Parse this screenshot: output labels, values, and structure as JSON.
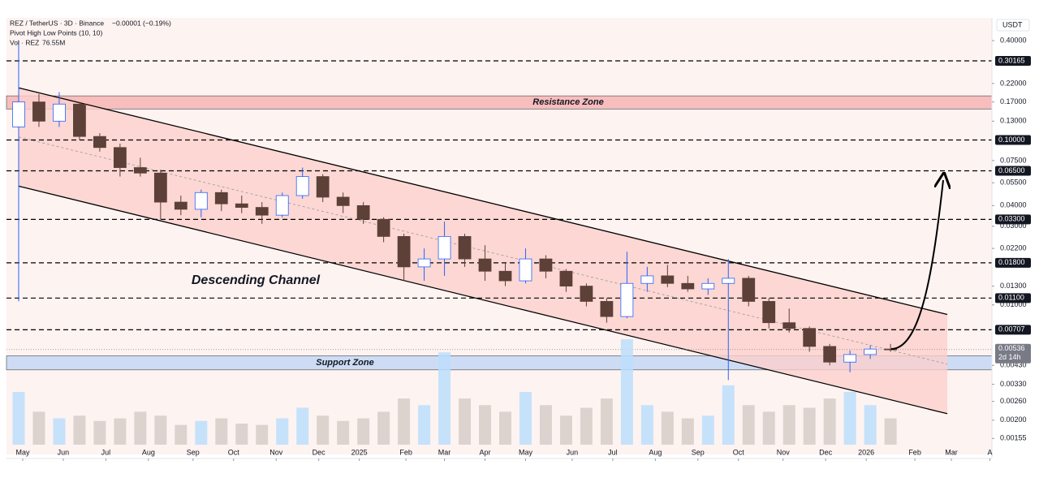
{
  "chart_data": {
    "type": "candlestick",
    "title": "REZ / TetherUS · 3D · Binance",
    "change": "−0.00001 (−0.19%)",
    "indicator": "Pivot High Low Points (10, 10)",
    "volume_title": "Vol · REZ",
    "volume_value": "76.55M",
    "currency": "USDT",
    "log_scale": true,
    "xlim": [
      -0.6,
      48
    ],
    "ylim": [
      0.00124,
      0.55
    ],
    "xticks": [
      {
        "value": 0.2,
        "label": "May"
      },
      {
        "value": 2.2,
        "label": "Jun"
      },
      {
        "value": 4.3,
        "label": "Jul"
      },
      {
        "value": 6.4,
        "label": "Aug"
      },
      {
        "value": 8.6,
        "label": "Sep"
      },
      {
        "value": 10.6,
        "label": "Oct"
      },
      {
        "value": 12.7,
        "label": "Nov"
      },
      {
        "value": 14.8,
        "label": "Dec"
      },
      {
        "value": 16.8,
        "label": "2025"
      },
      {
        "value": 19.1,
        "label": "Feb"
      },
      {
        "value": 21.0,
        "label": "Mar"
      },
      {
        "value": 23.0,
        "label": "Apr"
      },
      {
        "value": 25.0,
        "label": "May"
      },
      {
        "value": 27.3,
        "label": "Jun"
      },
      {
        "value": 29.3,
        "label": "Jul"
      },
      {
        "value": 31.4,
        "label": "Aug"
      },
      {
        "value": 33.5,
        "label": "Sep"
      },
      {
        "value": 35.5,
        "label": "Oct"
      },
      {
        "value": 37.7,
        "label": "Nov"
      },
      {
        "value": 39.8,
        "label": "Dec"
      },
      {
        "value": 41.8,
        "label": "2026"
      },
      {
        "value": 44.2,
        "label": "Feb"
      },
      {
        "value": 46.0,
        "label": "Mar"
      },
      {
        "value": 47.9,
        "label": "A"
      }
    ],
    "yticks": [
      {
        "value": 0.4,
        "label": "0.40000"
      },
      {
        "value": 0.22,
        "label": "0.22000"
      },
      {
        "value": 0.17,
        "label": "0.17000"
      },
      {
        "value": 0.13,
        "label": "0.13000"
      },
      {
        "value": 0.075,
        "label": "0.07500"
      },
      {
        "value": 0.055,
        "label": "0.05500"
      },
      {
        "value": 0.04,
        "label": "0.04000"
      },
      {
        "value": 0.03,
        "label": "0.03000"
      },
      {
        "value": 0.022,
        "label": "0.02200"
      },
      {
        "value": 0.013,
        "label": "0.01300"
      },
      {
        "value": 0.01,
        "label": "0.01000"
      },
      {
        "value": 0.0043,
        "label": "0.00430"
      },
      {
        "value": 0.0033,
        "label": "0.00330"
      },
      {
        "value": 0.0026,
        "label": "0.00260"
      },
      {
        "value": 0.002,
        "label": "0.00200"
      },
      {
        "value": 0.00155,
        "label": "0.00155"
      }
    ],
    "levels": [
      {
        "value": 0.30165,
        "label": "0.30165"
      },
      {
        "value": 0.1,
        "label": "0.10000"
      },
      {
        "value": 0.065,
        "label": "0.06500"
      },
      {
        "value": 0.033,
        "label": "0.03300"
      },
      {
        "value": 0.018,
        "label": "0.01800"
      },
      {
        "value": 0.011,
        "label": "0.01100"
      },
      {
        "value": 0.00707,
        "label": "0.00707"
      }
    ],
    "last_price": {
      "value": 0.00536,
      "label": "0.00536"
    },
    "countdown": "2d 14h",
    "up_color": "#ffffff",
    "up_edge": "#2962ff",
    "down_color": "#5d4037",
    "volume_up_color": "#bbdefb",
    "volume_down_color": "#d7ccc8",
    "zones": [
      {
        "name": "Resistance Zone",
        "low": 0.154,
        "high": 0.185,
        "color": "#f8b4b4"
      },
      {
        "name": "Support Zone",
        "low": 0.00404,
        "high": 0.00491,
        "color": "#c5d8f5"
      }
    ],
    "channel": {
      "name": "Descending Channel",
      "x": [
        0,
        45.8
      ],
      "upper": [
        0.207,
        0.00875
      ],
      "lower": [
        0.0525,
        0.00219
      ],
      "color": "#fbd0cc"
    },
    "open": [
      0.12,
      0.17,
      0.13,
      0.165,
      0.105,
      0.09,
      0.068,
      0.063,
      0.042,
      0.038,
      0.048,
      0.041,
      0.039,
      0.035,
      0.046,
      0.06,
      0.045,
      0.04,
      0.033,
      0.026,
      0.017,
      0.019,
      0.026,
      0.019,
      0.016,
      0.014,
      0.019,
      0.016,
      0.013,
      0.0105,
      0.0085,
      0.0135,
      0.015,
      0.0135,
      0.0125,
      0.0135,
      0.0145,
      0.0105,
      0.0078,
      0.0072,
      0.0056,
      0.0045,
      0.005,
      0.0054
    ],
    "high": [
      0.4,
      0.19,
      0.195,
      0.17,
      0.11,
      0.095,
      0.078,
      0.066,
      0.046,
      0.05,
      0.05,
      0.046,
      0.042,
      0.048,
      0.068,
      0.062,
      0.048,
      0.042,
      0.034,
      0.027,
      0.022,
      0.032,
      0.027,
      0.023,
      0.018,
      0.022,
      0.02,
      0.0165,
      0.0135,
      0.011,
      0.021,
      0.017,
      0.0175,
      0.015,
      0.0145,
      0.019,
      0.015,
      0.011,
      0.0095,
      0.0074,
      0.0058,
      0.0053,
      0.0057,
      0.0058
    ],
    "low": [
      0.0105,
      0.12,
      0.12,
      0.1,
      0.085,
      0.06,
      0.06,
      0.033,
      0.035,
      0.034,
      0.037,
      0.036,
      0.031,
      0.034,
      0.044,
      0.042,
      0.036,
      0.031,
      0.024,
      0.014,
      0.014,
      0.015,
      0.017,
      0.014,
      0.013,
      0.0135,
      0.0145,
      0.012,
      0.0098,
      0.0078,
      0.0083,
      0.012,
      0.0128,
      0.012,
      0.0115,
      0.0035,
      0.0098,
      0.0072,
      0.0068,
      0.0052,
      0.0043,
      0.0039,
      0.0047,
      0.0052
    ],
    "close": [
      0.17,
      0.13,
      0.165,
      0.105,
      0.09,
      0.068,
      0.063,
      0.042,
      0.038,
      0.048,
      0.041,
      0.039,
      0.035,
      0.046,
      0.06,
      0.045,
      0.04,
      0.033,
      0.026,
      0.017,
      0.019,
      0.026,
      0.019,
      0.016,
      0.014,
      0.019,
      0.016,
      0.013,
      0.0105,
      0.0085,
      0.0135,
      0.015,
      0.0135,
      0.0125,
      0.0135,
      0.0145,
      0.0105,
      0.0078,
      0.0072,
      0.0056,
      0.0045,
      0.005,
      0.0054,
      0.00536
    ],
    "volume": [
      40,
      25,
      20,
      22,
      18,
      20,
      25,
      22,
      15,
      18,
      20,
      16,
      15,
      20,
      28,
      22,
      18,
      20,
      25,
      35,
      30,
      70,
      35,
      30,
      25,
      40,
      30,
      22,
      28,
      35,
      80,
      30,
      25,
      20,
      22,
      45,
      30,
      25,
      30,
      28,
      35,
      40,
      30,
      20
    ]
  }
}
